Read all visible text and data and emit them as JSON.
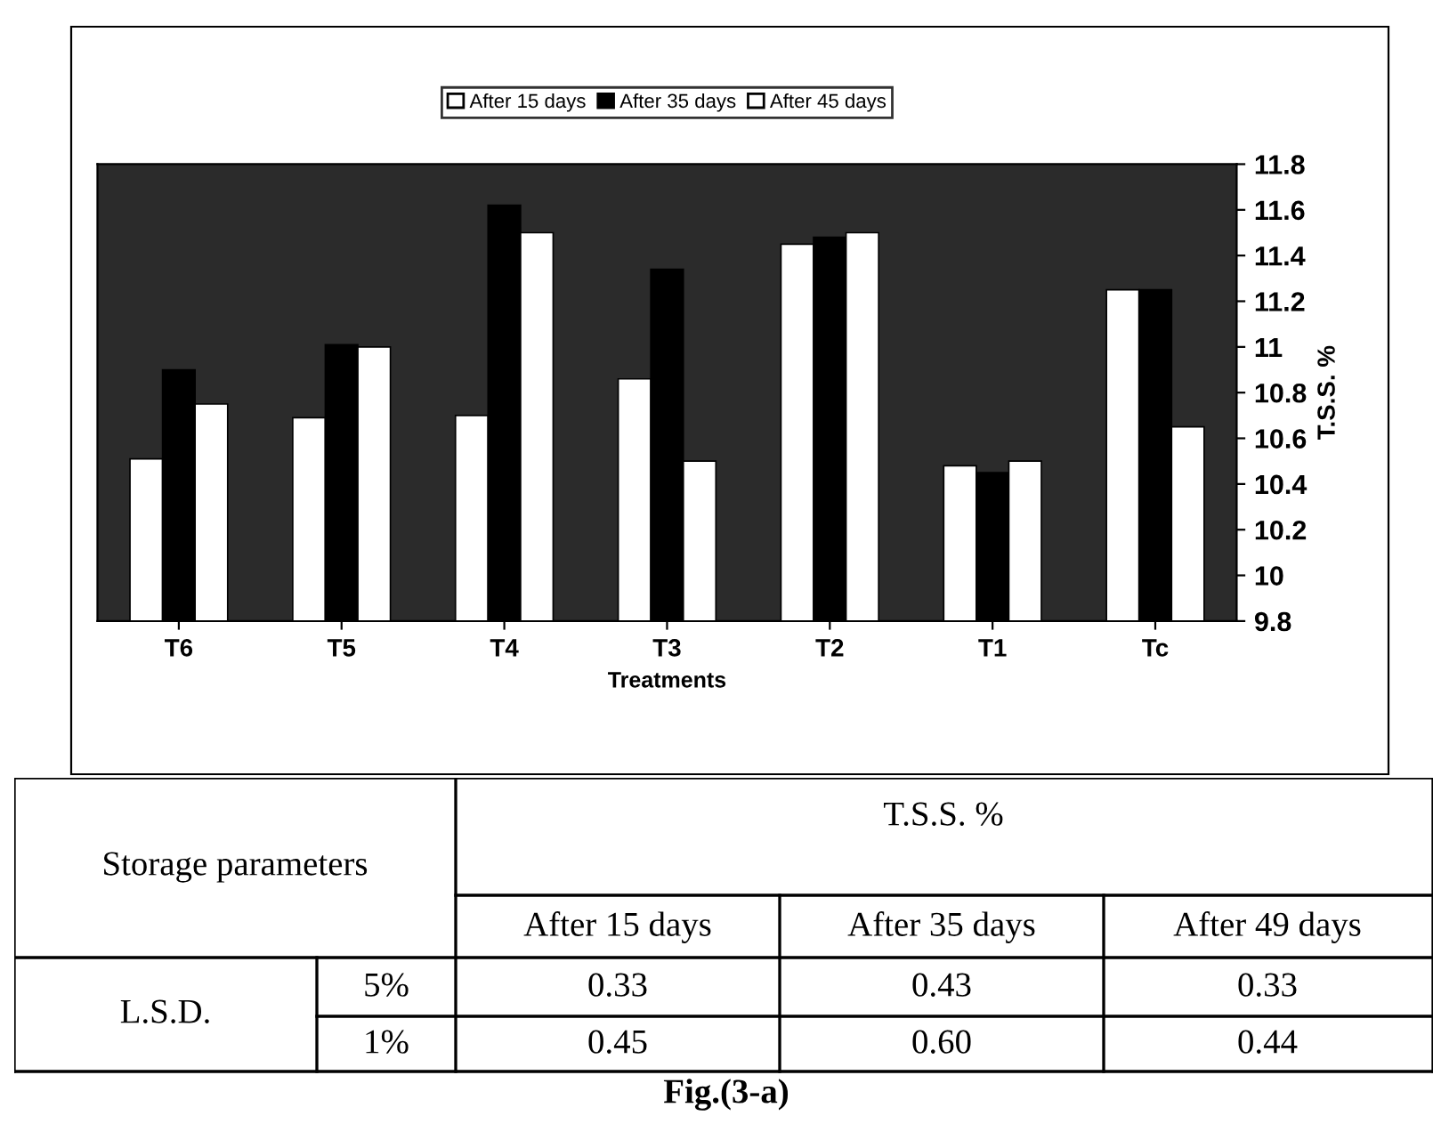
{
  "chart_data": {
    "type": "bar",
    "xlabel": "Treatments",
    "ylabel": "T.S.S. %",
    "categories": [
      "T6",
      "T5",
      "T4",
      "T3",
      "T2",
      "T1",
      "Tc"
    ],
    "series": [
      {
        "name": "After 15 days",
        "color": "#ffffff",
        "values": [
          10.51,
          10.69,
          10.7,
          10.86,
          11.45,
          10.48,
          11.25
        ]
      },
      {
        "name": "After 35 days",
        "color": "#000000",
        "values": [
          10.9,
          11.01,
          11.62,
          11.34,
          11.48,
          10.45,
          11.25
        ]
      },
      {
        "name": "After 45 days",
        "color": "#ffffff",
        "values": [
          10.75,
          11.0,
          11.5,
          10.5,
          11.5,
          10.5,
          10.65
        ]
      }
    ],
    "ylim": [
      9.8,
      11.8
    ],
    "yticks": [
      9.8,
      10,
      10.2,
      10.4,
      10.6,
      10.8,
      11,
      11.2,
      11.4,
      11.6,
      11.8
    ],
    "grid": false,
    "legend": "top",
    "annotations": [
      "Storage parameters",
      "T.S.S. %",
      "After 15 days",
      "After 35 days",
      "After 49 days",
      "L.S.D.",
      "5%",
      "0.33",
      "0.43",
      "0.33",
      "1%",
      "0.45",
      "0.60",
      "0.44",
      "Fig.(3-a)"
    ]
  }
}
